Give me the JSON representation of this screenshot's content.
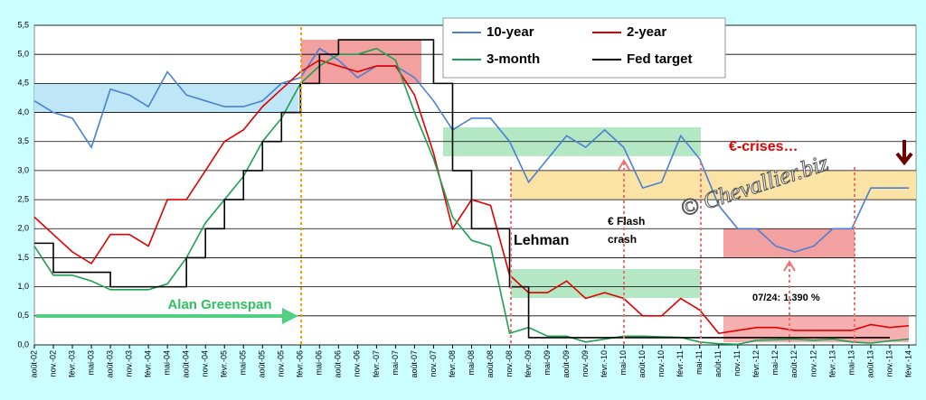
{
  "chart_data": {
    "type": "line",
    "categories": [
      "août-02",
      "nov.-02",
      "févr.-03",
      "mai-03",
      "août-03",
      "nov.-03",
      "févr.-04",
      "mai-04",
      "août-04",
      "nov.-04",
      "févr.-05",
      "mai-05",
      "août-05",
      "nov.-05",
      "févr.-06",
      "mai-06",
      "août-06",
      "nov.-06",
      "févr.-07",
      "mai-07",
      "août-07",
      "nov.-07",
      "févr.-08",
      "mai-08",
      "août-08",
      "nov.-08",
      "févr.-09",
      "mai-09",
      "août-09",
      "nov.-09",
      "févr.-10",
      "mai-10",
      "août-10",
      "nov.-10",
      "févr.-11",
      "mai-11",
      "août-11",
      "nov.-11",
      "févr.-12",
      "mai-12",
      "août-12",
      "nov.-12",
      "févr.-13",
      "mai-13",
      "août-13",
      "nov.-13",
      "févr.-14"
    ],
    "series": [
      {
        "name": "10-year",
        "color": "#4a7fd4",
        "values": [
          4.2,
          4.0,
          3.9,
          3.4,
          4.4,
          4.3,
          4.1,
          4.7,
          4.3,
          4.2,
          4.1,
          4.1,
          4.2,
          4.5,
          4.6,
          5.1,
          4.9,
          4.6,
          4.8,
          4.8,
          4.6,
          4.2,
          3.7,
          3.9,
          3.9,
          3.5,
          2.8,
          3.2,
          3.6,
          3.4,
          3.7,
          3.4,
          2.7,
          2.8,
          3.6,
          3.2,
          2.4,
          2.0,
          2.0,
          1.7,
          1.6,
          1.7,
          2.0,
          2.0,
          2.7,
          2.7,
          2.7
        ]
      },
      {
        "name": "2-year",
        "color": "#e00000",
        "values": [
          2.2,
          1.9,
          1.6,
          1.4,
          1.9,
          1.9,
          1.7,
          2.5,
          2.5,
          3.0,
          3.5,
          3.7,
          4.1,
          4.4,
          4.7,
          4.9,
          4.8,
          4.7,
          4.8,
          4.8,
          4.3,
          3.3,
          2.0,
          2.5,
          2.4,
          1.2,
          0.9,
          0.9,
          1.1,
          0.8,
          0.9,
          0.8,
          0.5,
          0.5,
          0.8,
          0.6,
          0.2,
          0.25,
          0.3,
          0.3,
          0.25,
          0.25,
          0.25,
          0.25,
          0.35,
          0.3,
          0.33
        ]
      },
      {
        "name": "3-month",
        "color": "#1aa050",
        "values": [
          1.7,
          1.2,
          1.2,
          1.1,
          0.95,
          0.95,
          0.95,
          1.05,
          1.5,
          2.1,
          2.5,
          2.9,
          3.5,
          3.9,
          4.5,
          4.8,
          5.0,
          5.0,
          5.1,
          4.9,
          4.0,
          3.2,
          2.2,
          1.8,
          1.7,
          0.2,
          0.3,
          0.15,
          0.15,
          0.05,
          0.1,
          0.15,
          0.15,
          0.14,
          0.13,
          0.05,
          0.02,
          0.01,
          0.08,
          0.09,
          0.1,
          0.08,
          0.1,
          0.05,
          0.03,
          0.07,
          0.1
        ]
      },
      {
        "name": "Fed target",
        "color": "#000000",
        "step": true,
        "values": [
          1.75,
          1.25,
          1.25,
          1.25,
          1.0,
          1.0,
          1.0,
          1.0,
          1.5,
          2.0,
          2.5,
          3.0,
          3.5,
          4.0,
          4.5,
          5.0,
          5.25,
          5.25,
          5.25,
          5.25,
          5.25,
          4.5,
          3.0,
          2.0,
          2.0,
          1.0,
          0.125,
          0.125,
          0.125,
          0.125,
          0.125,
          0.125,
          0.125,
          0.125,
          0.125,
          0.125,
          0.125,
          0.125,
          0.125,
          0.125,
          0.125,
          0.125,
          0.125,
          0.125,
          0.125,
          0.125,
          null
        ]
      }
    ],
    "ylim": [
      0,
      5.5
    ],
    "yticks": [
      {
        "value": 0,
        "label": "0,0"
      },
      {
        "value": 0.5,
        "label": "0,5"
      },
      {
        "value": 1,
        "label": "1,0"
      },
      {
        "value": 1.5,
        "label": "1,5"
      },
      {
        "value": 2,
        "label": "2,0"
      },
      {
        "value": 2.5,
        "label": "2,5"
      },
      {
        "value": 3,
        "label": "3,0"
      },
      {
        "value": 3.5,
        "label": "3,5"
      },
      {
        "value": 4,
        "label": "4,0"
      },
      {
        "value": 4.5,
        "label": "4,5"
      },
      {
        "value": 5,
        "label": "5,0"
      },
      {
        "value": 5.5,
        "label": "5,5"
      }
    ],
    "grid": true,
    "annotations": {
      "greenspan": "Alan Greenspan",
      "lehman": "Lehman",
      "flash1": "€ Flash",
      "flash2": "crash",
      "crises": "€-crises…",
      "last": "07/24:  1.390 %",
      "copyright": "© Chevallier.biz"
    }
  }
}
